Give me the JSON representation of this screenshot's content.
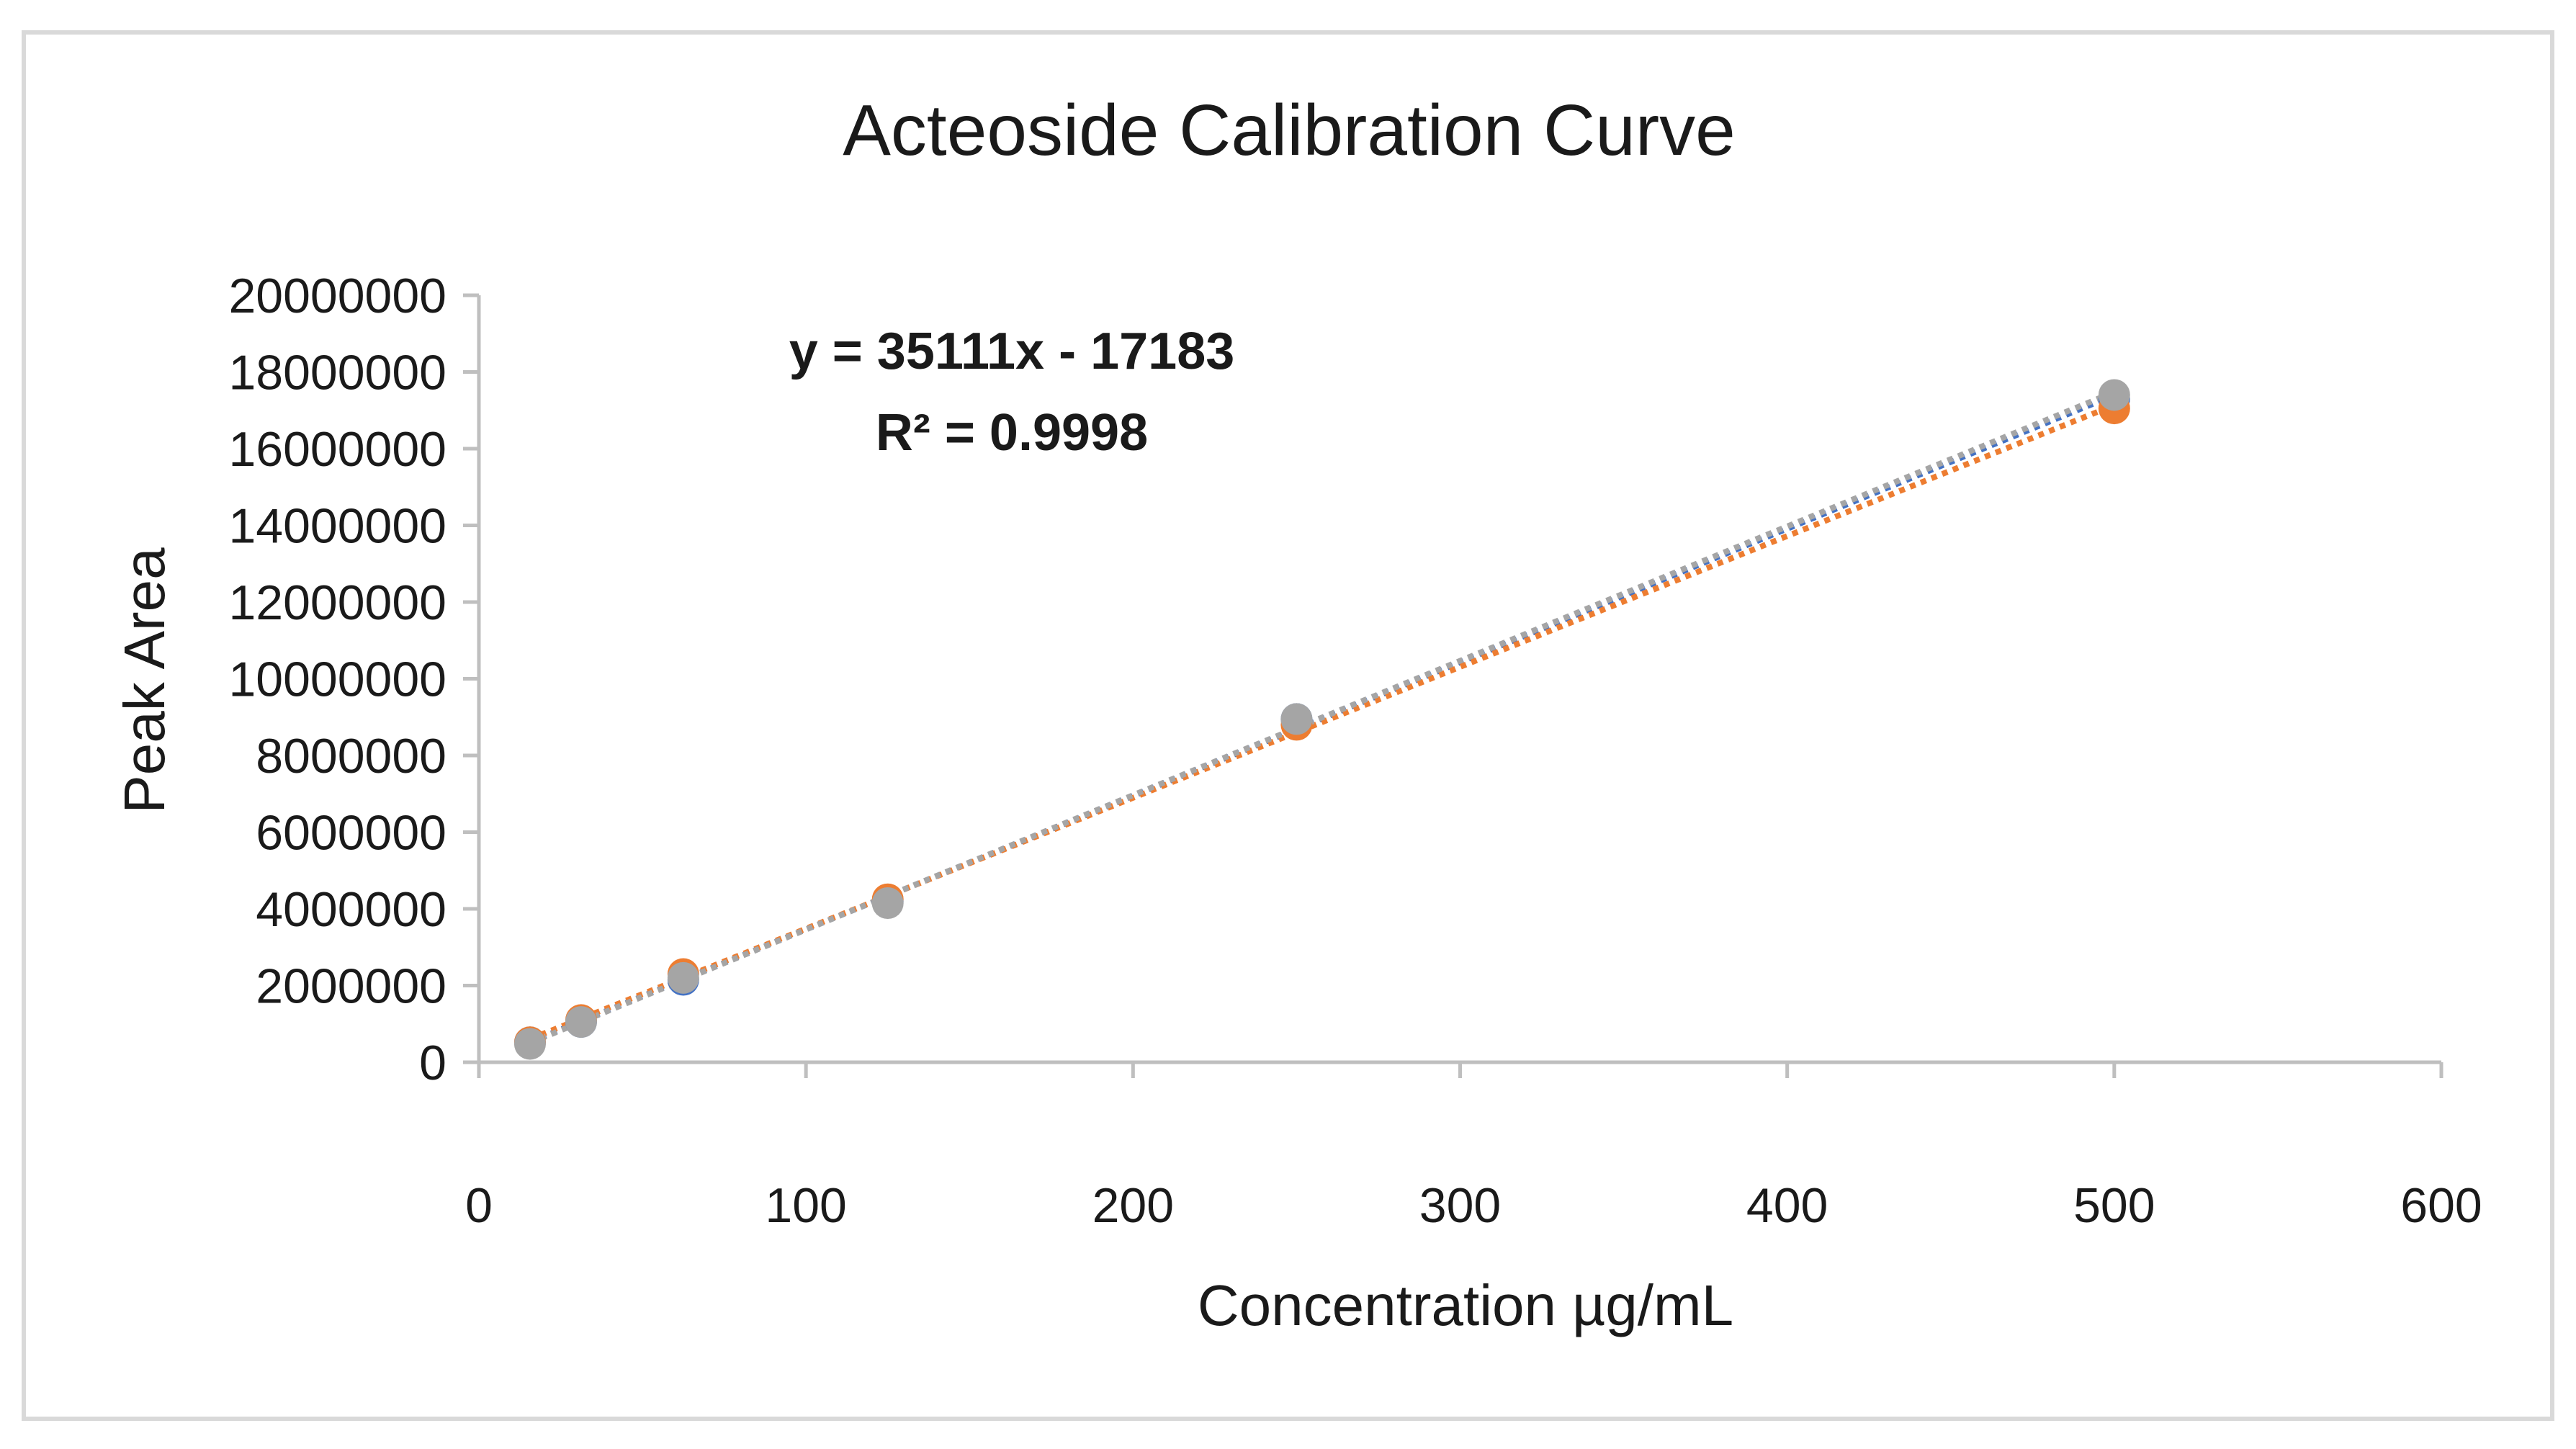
{
  "chart_data": {
    "type": "scatter",
    "title": "Acteoside Calibration Curve",
    "xlabel": "Concentration µg/mL",
    "ylabel": "Peak Area",
    "xlim": [
      0,
      600
    ],
    "ylim": [
      0,
      20000000
    ],
    "x_ticks": [
      "0",
      "100",
      "200",
      "300",
      "400",
      "500",
      "600"
    ],
    "y_ticks": [
      "0",
      "2000000",
      "4000000",
      "6000000",
      "8000000",
      "10000000",
      "12000000",
      "14000000",
      "16000000",
      "18000000",
      "20000000"
    ],
    "grid": false,
    "legend": "none",
    "annotation": {
      "equation": "y = 35111x - 17183",
      "r_squared": "R² = 0.9998"
    },
    "series": [
      {
        "color": "#4472C4",
        "x": [
          15.625,
          31.25,
          62.5,
          125,
          250,
          500
        ],
        "y": [
          520000,
          1050000,
          2150000,
          4200000,
          8950000,
          17300000
        ],
        "trendline": true
      },
      {
        "color": "#ED7D31",
        "x": [
          15.625,
          31.25,
          62.5,
          125,
          250,
          500
        ],
        "y": [
          520000,
          1100000,
          2300000,
          4250000,
          8800000,
          17050000
        ],
        "trendline": true
      },
      {
        "color": "#A5A5A5",
        "x": [
          15.625,
          31.25,
          62.5,
          125,
          250,
          500
        ],
        "y": [
          480000,
          1050000,
          2200000,
          4150000,
          8950000,
          17400000
        ],
        "trendline": true
      }
    ]
  }
}
